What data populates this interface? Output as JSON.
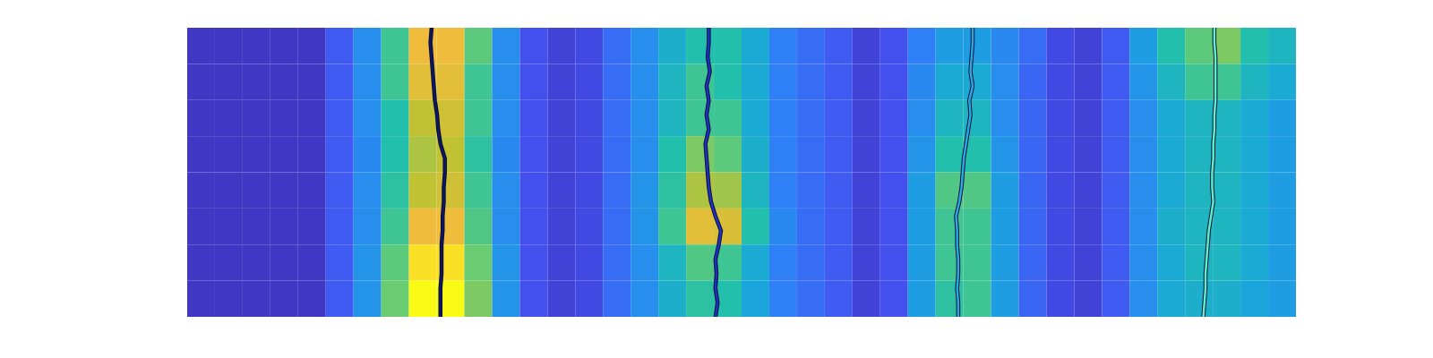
{
  "chart_data": {
    "type": "heatmap",
    "xlim": [
      0,
      100
    ],
    "ylim": [
      0,
      100
    ],
    "tick_labels": false,
    "zlim": [
      0,
      1
    ],
    "cells": [
      [
        0.05,
        0.05,
        0.05,
        0.05,
        0.05,
        0.15,
        0.3,
        0.55,
        0.85,
        0.85,
        0.6,
        0.3,
        0.12,
        0.08,
        0.1,
        0.2,
        0.3,
        0.42,
        0.5,
        0.5,
        0.4,
        0.25,
        0.2,
        0.15,
        0.08,
        0.12,
        0.25,
        0.35,
        0.35,
        0.28,
        0.2,
        0.1,
        0.08,
        0.15,
        0.35,
        0.5,
        0.6,
        0.65,
        0.5,
        0.45
      ],
      [
        0.05,
        0.05,
        0.05,
        0.05,
        0.05,
        0.15,
        0.3,
        0.55,
        0.82,
        0.82,
        0.55,
        0.3,
        0.12,
        0.08,
        0.1,
        0.2,
        0.3,
        0.45,
        0.55,
        0.5,
        0.4,
        0.25,
        0.2,
        0.15,
        0.08,
        0.12,
        0.28,
        0.4,
        0.4,
        0.3,
        0.18,
        0.1,
        0.08,
        0.15,
        0.32,
        0.45,
        0.55,
        0.55,
        0.45,
        0.4
      ],
      [
        0.05,
        0.05,
        0.05,
        0.05,
        0.05,
        0.15,
        0.3,
        0.5,
        0.75,
        0.78,
        0.55,
        0.3,
        0.12,
        0.08,
        0.1,
        0.2,
        0.3,
        0.45,
        0.55,
        0.55,
        0.4,
        0.25,
        0.2,
        0.15,
        0.08,
        0.12,
        0.3,
        0.45,
        0.45,
        0.3,
        0.18,
        0.1,
        0.08,
        0.15,
        0.3,
        0.4,
        0.45,
        0.45,
        0.4,
        0.35
      ],
      [
        0.05,
        0.05,
        0.05,
        0.05,
        0.05,
        0.15,
        0.28,
        0.5,
        0.72,
        0.75,
        0.52,
        0.28,
        0.12,
        0.08,
        0.1,
        0.2,
        0.3,
        0.5,
        0.65,
        0.6,
        0.42,
        0.25,
        0.2,
        0.15,
        0.08,
        0.12,
        0.32,
        0.5,
        0.5,
        0.32,
        0.18,
        0.1,
        0.08,
        0.15,
        0.3,
        0.4,
        0.45,
        0.45,
        0.4,
        0.35
      ],
      [
        0.05,
        0.05,
        0.05,
        0.05,
        0.05,
        0.15,
        0.3,
        0.52,
        0.75,
        0.78,
        0.55,
        0.3,
        0.12,
        0.08,
        0.1,
        0.2,
        0.32,
        0.52,
        0.72,
        0.7,
        0.45,
        0.25,
        0.2,
        0.15,
        0.08,
        0.12,
        0.35,
        0.58,
        0.58,
        0.35,
        0.18,
        0.1,
        0.08,
        0.15,
        0.3,
        0.4,
        0.45,
        0.45,
        0.4,
        0.35
      ],
      [
        0.05,
        0.05,
        0.05,
        0.05,
        0.05,
        0.15,
        0.3,
        0.55,
        0.85,
        0.85,
        0.58,
        0.3,
        0.12,
        0.08,
        0.1,
        0.2,
        0.32,
        0.55,
        0.82,
        0.8,
        0.5,
        0.28,
        0.2,
        0.15,
        0.08,
        0.12,
        0.35,
        0.55,
        0.55,
        0.35,
        0.18,
        0.1,
        0.08,
        0.15,
        0.3,
        0.42,
        0.45,
        0.45,
        0.4,
        0.35
      ],
      [
        0.05,
        0.05,
        0.05,
        0.05,
        0.05,
        0.15,
        0.32,
        0.6,
        0.95,
        0.95,
        0.62,
        0.32,
        0.12,
        0.08,
        0.1,
        0.2,
        0.3,
        0.45,
        0.58,
        0.55,
        0.4,
        0.25,
        0.2,
        0.15,
        0.08,
        0.12,
        0.35,
        0.55,
        0.55,
        0.35,
        0.18,
        0.1,
        0.08,
        0.15,
        0.3,
        0.4,
        0.45,
        0.45,
        0.4,
        0.35
      ],
      [
        0.05,
        0.05,
        0.05,
        0.05,
        0.05,
        0.15,
        0.32,
        0.62,
        1.0,
        1.0,
        0.65,
        0.32,
        0.12,
        0.08,
        0.1,
        0.2,
        0.3,
        0.42,
        0.52,
        0.5,
        0.38,
        0.25,
        0.2,
        0.15,
        0.08,
        0.12,
        0.35,
        0.52,
        0.55,
        0.35,
        0.18,
        0.1,
        0.08,
        0.15,
        0.3,
        0.4,
        0.42,
        0.42,
        0.38,
        0.35
      ]
    ],
    "y": [
      0,
      5,
      10,
      15,
      20,
      25,
      30,
      35,
      40,
      45,
      50,
      55,
      60,
      65,
      70,
      75,
      80,
      85,
      90,
      95,
      100
    ],
    "series": [
      {
        "type": "line",
        "color": "#0d1660",
        "x": [
          22.0,
          21.9,
          22.0,
          22.1,
          22.2,
          22.3,
          22.5,
          22.6,
          22.8,
          23.2,
          23.2,
          23.1,
          23.1,
          23.0,
          23.0,
          22.9,
          22.9,
          22.9,
          22.8,
          22.8,
          22.8
        ]
      },
      {
        "type": "line",
        "color": "#1f2fc0",
        "x": [
          47.0,
          47.0,
          46.9,
          47.1,
          46.8,
          47.0,
          46.8,
          47.0,
          46.7,
          46.8,
          46.9,
          47.0,
          47.2,
          47.6,
          48.1,
          47.9,
          47.6,
          47.7,
          47.6,
          47.8,
          47.6
        ]
      },
      {
        "type": "line",
        "color": "#27a9e1",
        "x": [
          70.8,
          70.8,
          70.7,
          70.6,
          70.8,
          70.5,
          70.6,
          70.4,
          70.2,
          70.0,
          69.9,
          69.8,
          69.6,
          69.3,
          69.4,
          69.4,
          69.5,
          69.5,
          69.4,
          69.5,
          69.5
        ]
      },
      {
        "type": "line",
        "color": "#5cf0c8",
        "x": [
          92.6,
          92.6,
          92.7,
          92.7,
          92.7,
          92.7,
          92.6,
          92.6,
          92.5,
          92.5,
          92.4,
          92.4,
          92.5,
          92.3,
          92.1,
          92.0,
          91.9,
          91.8,
          91.8,
          91.7,
          91.6
        ]
      }
    ]
  }
}
